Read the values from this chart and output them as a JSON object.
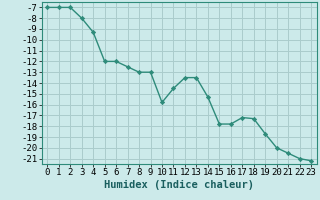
{
  "x": [
    0,
    1,
    2,
    3,
    4,
    5,
    6,
    7,
    8,
    9,
    10,
    11,
    12,
    13,
    14,
    15,
    16,
    17,
    18,
    19,
    20,
    21,
    22,
    23
  ],
  "y": [
    -7,
    -7,
    -7,
    -8,
    -9.3,
    -12,
    -12,
    -12.5,
    -13,
    -13,
    -15.8,
    -14.5,
    -13.5,
    -13.5,
    -15.3,
    -17.8,
    -17.8,
    -17.2,
    -17.3,
    -18.7,
    -20,
    -20.5,
    -21,
    -21.2
  ],
  "line_color": "#2e8b7a",
  "marker_color": "#2e8b7a",
  "bg_color": "#cceaea",
  "grid_color": "#aacccc",
  "xlabel": "Humidex (Indice chaleur)",
  "ylim": [
    -21.5,
    -6.5
  ],
  "xlim": [
    -0.5,
    23.5
  ],
  "yticks": [
    -7,
    -8,
    -9,
    -10,
    -11,
    -12,
    -13,
    -14,
    -15,
    -16,
    -17,
    -18,
    -19,
    -20,
    -21
  ],
  "xticks": [
    0,
    1,
    2,
    3,
    4,
    5,
    6,
    7,
    8,
    9,
    10,
    11,
    12,
    13,
    14,
    15,
    16,
    17,
    18,
    19,
    20,
    21,
    22,
    23
  ],
  "label_fontsize": 7.5,
  "tick_fontsize": 6.5
}
